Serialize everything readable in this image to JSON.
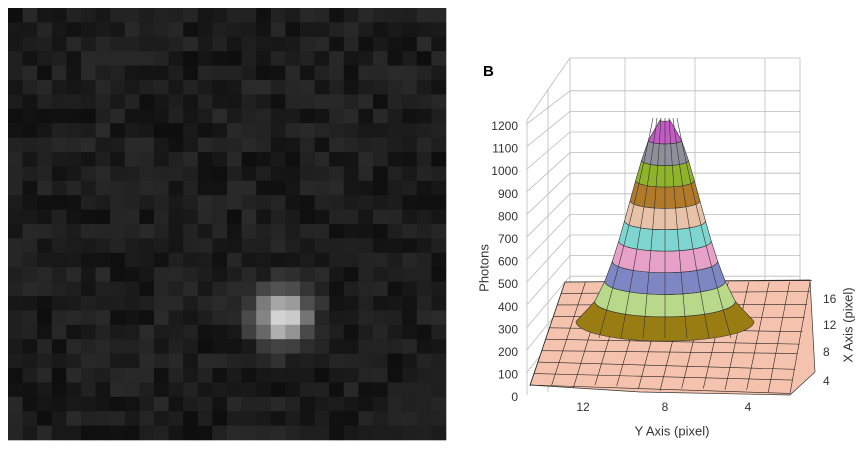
{
  "panel_b": {
    "label": "B",
    "z_axis": {
      "title": "Photons",
      "ticks": [
        0,
        100,
        200,
        300,
        400,
        500,
        600,
        700,
        800,
        900,
        1000,
        1100,
        1200
      ]
    },
    "y_axis": {
      "title": "Y Axis (pixel)",
      "ticks": [
        12,
        8,
        4
      ]
    },
    "x_axis": {
      "title": "X Axis (pixel)",
      "ticks": [
        4,
        8,
        12,
        16
      ]
    }
  }
}
